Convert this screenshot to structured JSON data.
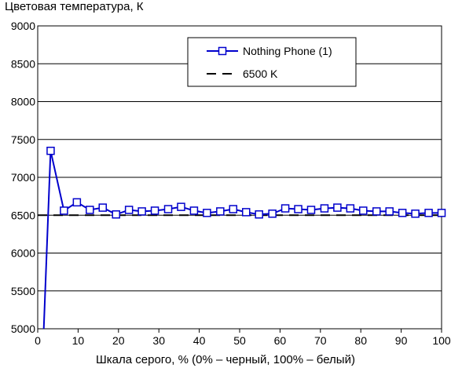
{
  "chart_data": {
    "type": "line",
    "title": "Цветовая температура, К",
    "xlabel": "Шкала серого, % (0% – черный, 100% – белый)",
    "ylabel": "",
    "xlim": [
      0,
      100
    ],
    "ylim": [
      5000,
      9000
    ],
    "x_ticks": [
      "0",
      "10",
      "20",
      "30",
      "40",
      "50",
      "60",
      "70",
      "80",
      "90",
      "100"
    ],
    "y_ticks": [
      "5000",
      "5500",
      "6000",
      "6500",
      "7000",
      "7500",
      "8000",
      "8500",
      "9000"
    ],
    "grid": "horizontal",
    "legend_position": "top-right",
    "series": [
      {
        "name": "Nothing Phone (1)",
        "color": "#0000cc",
        "marker": "open-square",
        "x": [
          1.5,
          3.2,
          6.5,
          9.7,
          12.9,
          16.1,
          19.4,
          22.6,
          25.8,
          29.0,
          32.3,
          35.5,
          38.7,
          41.9,
          45.2,
          48.4,
          51.6,
          54.8,
          58.1,
          61.3,
          64.5,
          67.7,
          71.0,
          74.2,
          77.4,
          80.6,
          83.9,
          87.1,
          90.3,
          93.5,
          96.8,
          100
        ],
        "y": [
          5000,
          7350,
          6560,
          6670,
          6570,
          6600,
          6510,
          6570,
          6550,
          6560,
          6580,
          6610,
          6560,
          6530,
          6550,
          6580,
          6540,
          6510,
          6520,
          6590,
          6580,
          6570,
          6590,
          6600,
          6590,
          6560,
          6550,
          6550,
          6530,
          6520,
          6530,
          6530
        ]
      },
      {
        "name": "6500 K",
        "color": "#000000",
        "dash": "dashed",
        "x": [
          0,
          100
        ],
        "y": [
          6500,
          6500
        ]
      }
    ]
  }
}
